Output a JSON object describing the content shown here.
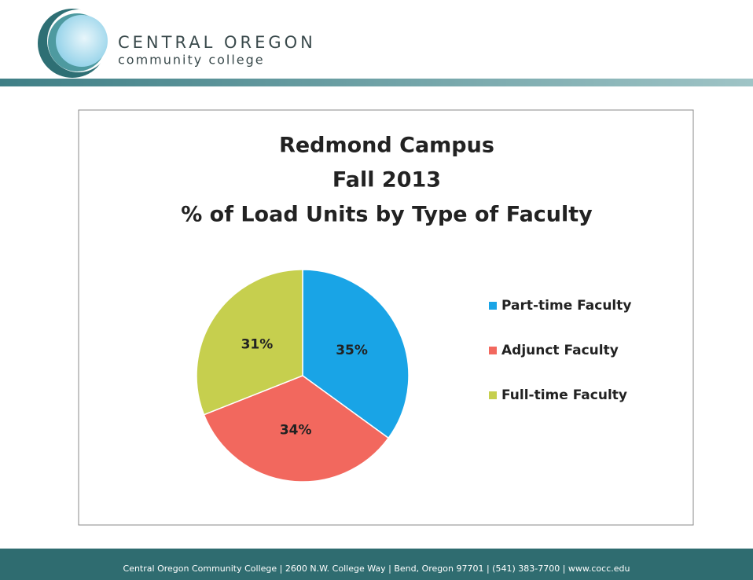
{
  "header": {
    "name": "CENTRAL OREGON",
    "subname": "community college"
  },
  "footer": "Central Oregon Community College | 2600 N.W. College Way | Bend, Oregon 97701 | (541) 383-7700 | www.cocc.edu",
  "chart_data": {
    "type": "pie",
    "title": [
      "Redmond Campus",
      "Fall 2013",
      "% of Load Units by Type of Faculty"
    ],
    "categories": [
      "Part-time Faculty",
      "Adjunct Faculty",
      "Full-time Faculty"
    ],
    "values": [
      35,
      34,
      31
    ],
    "value_labels": [
      "35%",
      "34%",
      "31%"
    ],
    "colors": [
      "#19a4e6",
      "#f2685e",
      "#c6cf4e"
    ],
    "legend": "right"
  }
}
